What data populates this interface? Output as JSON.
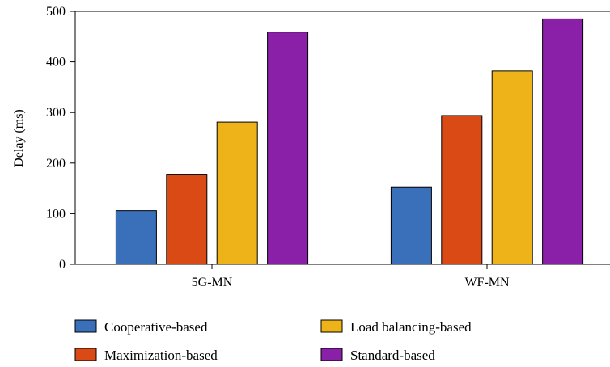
{
  "chart_data": {
    "type": "bar",
    "title": "",
    "xlabel": "",
    "ylabel": "Delay (ms)",
    "ylim": [
      0,
      500
    ],
    "yticks": [
      0,
      100,
      200,
      300,
      400,
      500
    ],
    "grid": false,
    "legend_position": "bottom",
    "categories": [
      "5G-MN",
      "WF-MN"
    ],
    "series": [
      {
        "name": "Cooperative-based",
        "color": "#3a6fba",
        "values": [
          106,
          153
        ]
      },
      {
        "name": "Maximization-based",
        "color": "#d94a15",
        "values": [
          178,
          294
        ]
      },
      {
        "name": "Load balancing-based",
        "color": "#eeb318",
        "values": [
          281,
          382
        ]
      },
      {
        "name": "Standard-based",
        "color": "#8a1fa8",
        "values": [
          459,
          485
        ]
      }
    ]
  }
}
